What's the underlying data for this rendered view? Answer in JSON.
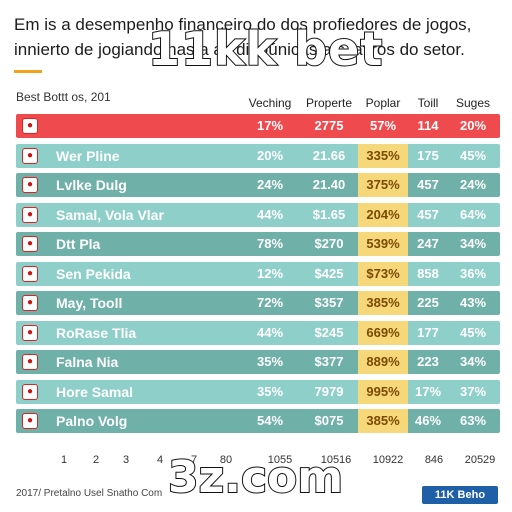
{
  "headline": "Em is a desempenho financeiro do dos profiedores de jogos, innierto de jogiando nas a as dinoúnicas a s lafiros do setor.",
  "watermark_top": "11kk bet",
  "watermark_bottom": "3z.com",
  "footer": "2017/ Pretalno Usel Snatho Com",
  "brand_badge": "11K Beho",
  "chart_data": {
    "type": "table",
    "title": "Best Bottt os, 201",
    "columns": [
      "Veching",
      "Properte",
      "Poplar",
      "Toill",
      "Suges"
    ],
    "rows": [
      {
        "name": "",
        "values": [
          "17%",
          "2775",
          "57%",
          "114",
          "20%"
        ]
      },
      {
        "name": "Wer Pline",
        "values": [
          "20%",
          "21.66",
          "335%",
          "175",
          "45%"
        ]
      },
      {
        "name": "Lvlke Dulg",
        "values": [
          "24%",
          "21.40",
          "375%",
          "457",
          "24%"
        ]
      },
      {
        "name": "Samal, Vola Vlar",
        "values": [
          "44%",
          "$1.65",
          "204%",
          "457",
          "64%"
        ]
      },
      {
        "name": "Dtt Pla",
        "values": [
          "78%",
          "$270",
          "539%",
          "247",
          "34%"
        ]
      },
      {
        "name": "Sen Pekida",
        "values": [
          "12%",
          "$425",
          "$73%",
          "858",
          "36%"
        ]
      },
      {
        "name": "May, Tooll",
        "values": [
          "72%",
          "$357",
          "385%",
          "225",
          "43%"
        ]
      },
      {
        "name": "RoRase Tlia",
        "values": [
          "44%",
          "$245",
          "669%",
          "177",
          "45%"
        ]
      },
      {
        "name": "Falna Nia",
        "values": [
          "35%",
          "$377",
          "889%",
          "223",
          "34%"
        ]
      },
      {
        "name": "Hore Samal",
        "values": [
          "35%",
          "7979",
          "995%",
          "17%",
          "37%"
        ]
      },
      {
        "name": "Palno Volg",
        "values": [
          "54%",
          "$075",
          "385%",
          "46%",
          "63%"
        ]
      }
    ],
    "x_ticks": [
      "1",
      "2",
      "3",
      "4",
      "7",
      "80",
      "1055",
      "10516",
      "10922",
      "846",
      "20529"
    ],
    "colors": {
      "header_row": "#ef4b4f",
      "teal_row": "#8fcfc9",
      "dark_row": "#6fb0a8",
      "poplar_column": "#f6d77a",
      "brand": "#1f5fa8",
      "accent": "#f3a21b"
    }
  }
}
